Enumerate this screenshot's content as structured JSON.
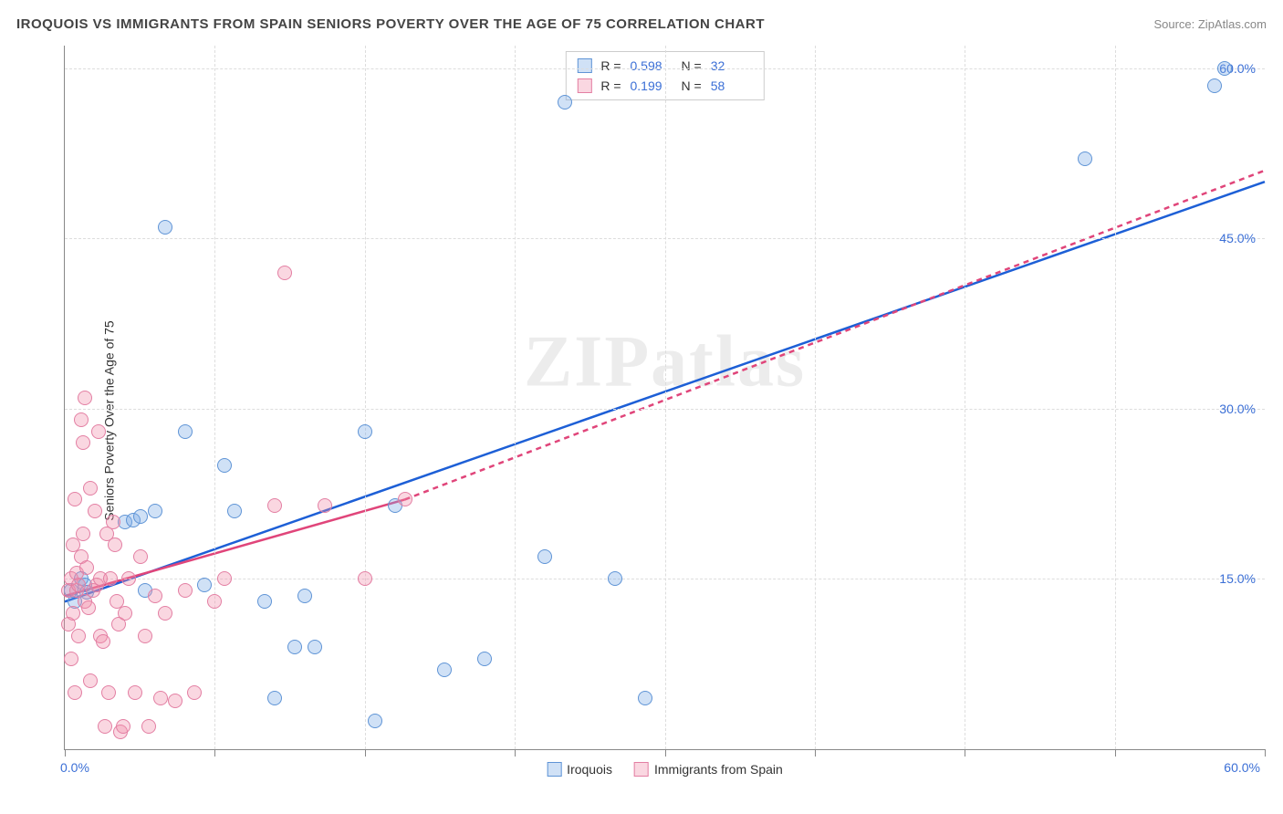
{
  "header": {
    "title": "IROQUOIS VS IMMIGRANTS FROM SPAIN SENIORS POVERTY OVER THE AGE OF 75 CORRELATION CHART",
    "source_prefix": "Source: ",
    "source_name": "ZipAtlas.com"
  },
  "chart": {
    "type": "scatter",
    "ylabel": "Seniors Poverty Over the Age of 75",
    "watermark": "ZIPatlas",
    "background_color": "#ffffff",
    "grid_color": "#dddddd",
    "axis_color": "#888888",
    "value_color": "#3b6fd6",
    "xlim": [
      0,
      60
    ],
    "ylim": [
      0,
      62
    ],
    "x_tick_step": 7.5,
    "x_min_label": "0.0%",
    "x_max_label": "60.0%",
    "y_ticks": [
      {
        "v": 15,
        "label": "15.0%"
      },
      {
        "v": 30,
        "label": "30.0%"
      },
      {
        "v": 45,
        "label": "45.0%"
      },
      {
        "v": 60,
        "label": "60.0%"
      }
    ],
    "marker_radius": 8,
    "marker_border_width": 1.2,
    "trend_line_width": 2.5,
    "series": [
      {
        "id": "iroquois",
        "label": "Iroquois",
        "fill": "rgba(120,170,230,0.35)",
        "stroke": "#5f94d6",
        "r": 0.598,
        "n": 32,
        "trend": {
          "x1": 0,
          "y1": 13,
          "x2": 60,
          "y2": 50,
          "dash": false,
          "color": "#1d5fd6"
        },
        "points": [
          [
            0.3,
            14
          ],
          [
            0.5,
            13
          ],
          [
            0.8,
            15
          ],
          [
            1.0,
            14.5
          ],
          [
            1.1,
            13.8
          ],
          [
            3.0,
            20
          ],
          [
            3.4,
            20.2
          ],
          [
            3.8,
            20.5
          ],
          [
            4.0,
            14
          ],
          [
            4.5,
            21
          ],
          [
            5.0,
            46
          ],
          [
            6.0,
            28
          ],
          [
            7.0,
            14.5
          ],
          [
            8.0,
            25
          ],
          [
            8.5,
            21
          ],
          [
            10.0,
            13
          ],
          [
            10.5,
            4.5
          ],
          [
            11.5,
            9
          ],
          [
            12.0,
            13.5
          ],
          [
            12.5,
            9
          ],
          [
            15.0,
            28
          ],
          [
            15.5,
            2.5
          ],
          [
            16.5,
            21.5
          ],
          [
            19.0,
            7
          ],
          [
            21.0,
            8
          ],
          [
            24.0,
            17
          ],
          [
            25.0,
            57
          ],
          [
            27.5,
            15
          ],
          [
            29.0,
            4.5
          ],
          [
            51.0,
            52
          ],
          [
            57.5,
            58.5
          ],
          [
            58.0,
            60
          ]
        ]
      },
      {
        "id": "spain",
        "label": "Immigrants from Spain",
        "fill": "rgba(240,140,170,0.35)",
        "stroke": "#e37fa3",
        "r": 0.199,
        "n": 58,
        "trend": {
          "x1": 0,
          "y1": 13.5,
          "x2": 17,
          "y2": 22,
          "dash": false,
          "color": "#e0457a",
          "ext_x2": 60,
          "ext_y2": 51,
          "ext_dash": true
        },
        "points": [
          [
            0.2,
            11
          ],
          [
            0.2,
            14
          ],
          [
            0.3,
            15
          ],
          [
            0.3,
            8
          ],
          [
            0.4,
            18
          ],
          [
            0.4,
            12
          ],
          [
            0.5,
            5
          ],
          [
            0.5,
            22
          ],
          [
            0.6,
            15.5
          ],
          [
            0.6,
            14
          ],
          [
            0.7,
            14.5
          ],
          [
            0.7,
            10
          ],
          [
            0.8,
            29
          ],
          [
            0.8,
            17
          ],
          [
            0.9,
            27
          ],
          [
            0.9,
            19
          ],
          [
            1.0,
            31
          ],
          [
            1.0,
            13
          ],
          [
            1.1,
            16
          ],
          [
            1.2,
            12.5
          ],
          [
            1.3,
            23
          ],
          [
            1.3,
            6
          ],
          [
            1.4,
            14
          ],
          [
            1.5,
            21
          ],
          [
            1.6,
            14.5
          ],
          [
            1.7,
            28
          ],
          [
            1.8,
            10
          ],
          [
            1.8,
            15
          ],
          [
            1.9,
            9.5
          ],
          [
            2.0,
            2
          ],
          [
            2.1,
            19
          ],
          [
            2.2,
            5
          ],
          [
            2.3,
            15
          ],
          [
            2.4,
            20
          ],
          [
            2.5,
            18
          ],
          [
            2.6,
            13
          ],
          [
            2.7,
            11
          ],
          [
            2.8,
            1.5
          ],
          [
            2.9,
            2
          ],
          [
            3.0,
            12
          ],
          [
            3.2,
            15
          ],
          [
            3.5,
            5
          ],
          [
            3.8,
            17
          ],
          [
            4.0,
            10
          ],
          [
            4.2,
            2
          ],
          [
            4.5,
            13.5
          ],
          [
            4.8,
            4.5
          ],
          [
            5.0,
            12
          ],
          [
            5.5,
            4.3
          ],
          [
            6.0,
            14
          ],
          [
            6.5,
            5
          ],
          [
            7.5,
            13
          ],
          [
            8.0,
            15
          ],
          [
            10.5,
            21.5
          ],
          [
            11.0,
            42
          ],
          [
            13.0,
            21.5
          ],
          [
            15.0,
            15
          ],
          [
            17.0,
            22
          ]
        ]
      }
    ],
    "legend_r_label": "R =",
    "legend_n_label": "N ="
  }
}
